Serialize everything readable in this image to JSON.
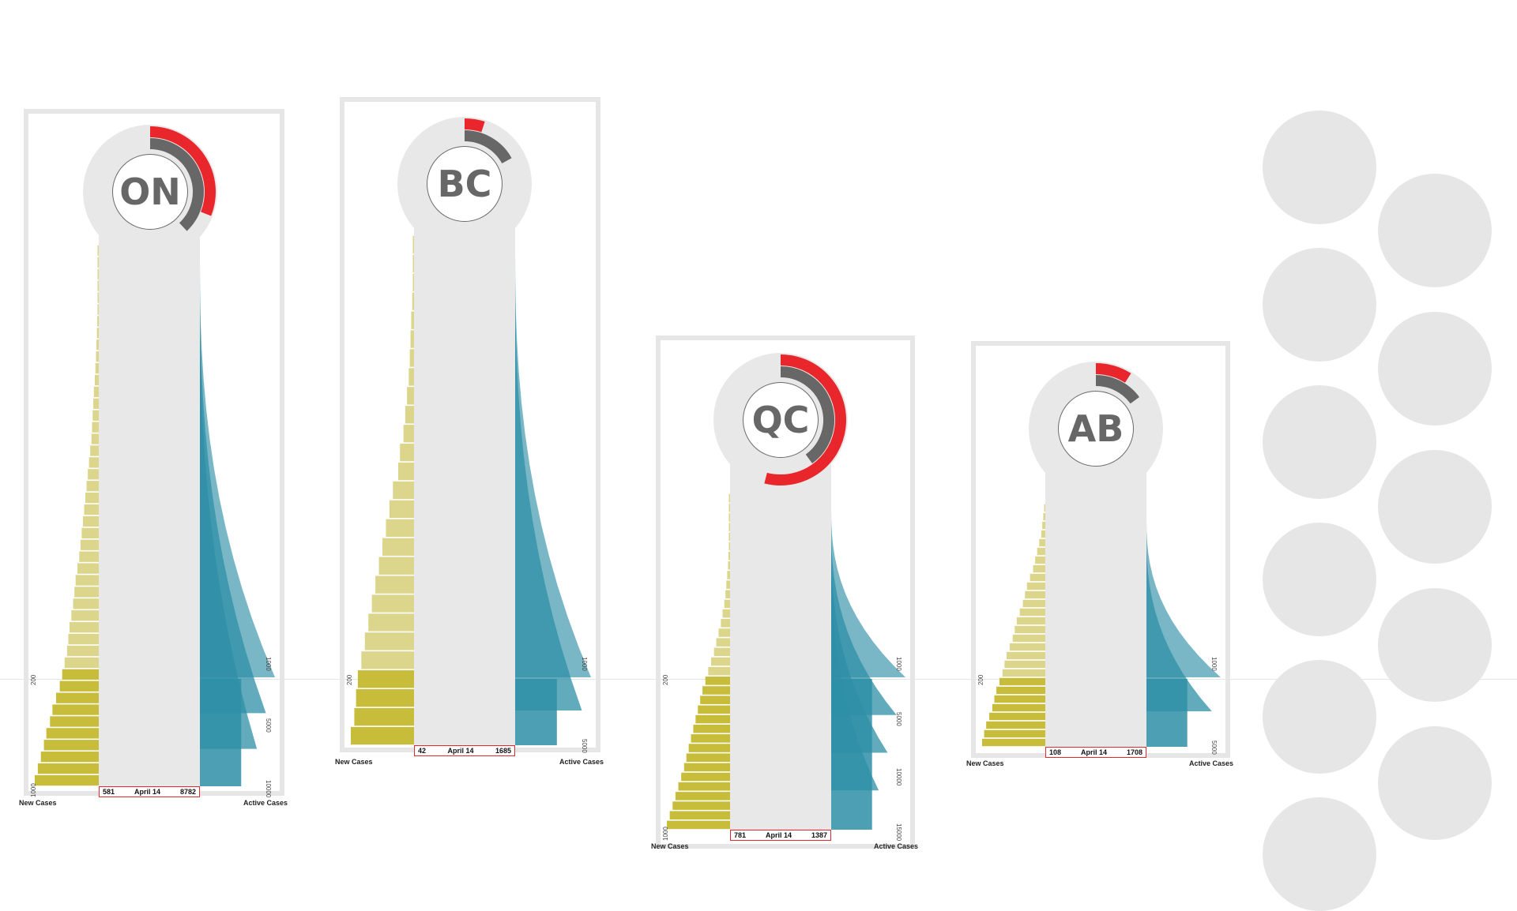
{
  "colors": {
    "new_cases": "#c8bd3a",
    "new_cases_light": "#dcd68c",
    "active_cases": "#2e8fa6",
    "active_cases_light": "#79b7c6",
    "ring_red": "#e8262b",
    "ring_grey": "#676767",
    "panel_grey": "#e8e8e8"
  },
  "chart_data": [
    {
      "type": "bar",
      "region": "ON",
      "date": "April 14",
      "new_cases_value": "581",
      "active_cases_value": "8782",
      "left_axis_title": "New Cases",
      "right_axis_title": "Active Cases",
      "left_ticks": [
        "200",
        "1000"
      ],
      "right_ticks": [
        "1000",
        "5000",
        "10000"
      ],
      "ring_outer_fraction": 0.31,
      "ring_inner_fraction": 0.38,
      "new_cases": [
        2,
        5,
        8,
        12,
        15,
        20,
        25,
        30,
        38,
        45,
        55,
        65,
        80,
        90,
        100,
        110,
        120,
        140,
        160,
        180,
        200,
        220,
        240,
        260,
        280,
        300,
        320,
        350,
        380,
        400,
        420,
        450,
        480,
        500,
        520,
        560,
        600,
        640,
        700,
        760,
        800,
        860,
        900,
        950,
        1000,
        1050
      ]
    },
    {
      "type": "bar",
      "region": "BC",
      "date": "April 14",
      "new_cases_value": "42",
      "active_cases_value": "1685",
      "left_axis_title": "New Cases",
      "right_axis_title": "Active Cases",
      "left_ticks": [
        "200"
      ],
      "right_ticks": [
        "1000",
        "5000"
      ],
      "ring_outer_fraction": 0.05,
      "ring_inner_fraction": 0.17,
      "new_cases": [
        1,
        2,
        3,
        5,
        8,
        10,
        12,
        15,
        20,
        25,
        30,
        40,
        45,
        60,
        70,
        80,
        90,
        100,
        110,
        120,
        130,
        140,
        150,
        160,
        165,
        170,
        180
      ]
    },
    {
      "type": "bar",
      "region": "QC",
      "date": "April 14",
      "new_cases_value": "781",
      "active_cases_value": "1387",
      "left_axis_title": "New Cases",
      "right_axis_title": "Active Cases",
      "left_ticks": [
        "200",
        "1000"
      ],
      "right_ticks": [
        "1000",
        "5000",
        "10000",
        "15000"
      ],
      "ring_outer_fraction": 0.54,
      "ring_inner_fraction": 0.4,
      "new_cases": [
        2,
        4,
        6,
        10,
        14,
        20,
        28,
        36,
        50,
        65,
        80,
        100,
        130,
        160,
        200,
        240,
        280,
        330,
        380,
        430,
        480,
        520,
        560,
        600,
        640,
        680,
        720,
        760,
        800,
        850,
        900,
        950,
        1000,
        1050,
        1100
      ]
    },
    {
      "type": "bar",
      "region": "AB",
      "date": "April 14",
      "new_cases_value": "108",
      "active_cases_value": "1708",
      "left_axis_title": "New Cases",
      "right_axis_title": "Active Cases",
      "left_ticks": [
        "200"
      ],
      "right_ticks": [
        "1000",
        "5000"
      ],
      "ring_outer_fraction": 0.09,
      "ring_inner_fraction": 0.15,
      "new_cases": [
        1,
        2,
        3,
        4,
        6,
        8,
        10,
        12,
        15,
        18,
        20,
        22,
        25,
        28,
        30,
        32,
        35,
        38,
        40,
        42,
        45,
        48,
        50,
        52,
        55,
        58,
        60,
        62
      ]
    }
  ],
  "decorative_circle_count": 11
}
